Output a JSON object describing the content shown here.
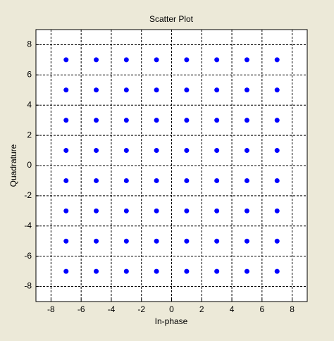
{
  "chart_data": {
    "type": "scatter",
    "title": "Scatter Plot",
    "x_label": "In-phase",
    "y_label": "Quadrature",
    "x": [
      -7,
      -7,
      -7,
      -7,
      -7,
      -7,
      -7,
      -7,
      -5,
      -5,
      -5,
      -5,
      -5,
      -5,
      -5,
      -5,
      -3,
      -3,
      -3,
      -3,
      -3,
      -3,
      -3,
      -3,
      -1,
      -1,
      -1,
      -1,
      -1,
      -1,
      -1,
      -1,
      1,
      1,
      1,
      1,
      1,
      1,
      1,
      1,
      3,
      3,
      3,
      3,
      3,
      3,
      3,
      3,
      5,
      5,
      5,
      5,
      5,
      5,
      5,
      5,
      7,
      7,
      7,
      7,
      7,
      7,
      7,
      7
    ],
    "y": [
      7,
      5,
      3,
      1,
      -1,
      -3,
      -5,
      -7,
      7,
      5,
      3,
      1,
      -1,
      -3,
      -5,
      -7,
      7,
      5,
      3,
      1,
      -1,
      -3,
      -5,
      -7,
      7,
      5,
      3,
      1,
      -1,
      -3,
      -5,
      -7,
      7,
      5,
      3,
      1,
      -1,
      -3,
      -5,
      -7,
      7,
      5,
      3,
      1,
      -1,
      -3,
      -5,
      -7,
      7,
      5,
      3,
      1,
      -1,
      -3,
      -5,
      -7,
      7,
      5,
      3,
      1,
      -1,
      -3,
      -5,
      -7
    ],
    "color": "#0000ff",
    "xlim": [
      -9,
      9
    ],
    "ylim": [
      -9,
      9
    ],
    "xticks": [
      -8,
      -6,
      -4,
      -2,
      0,
      2,
      4,
      6,
      8
    ],
    "yticks": [
      -8,
      -6,
      -4,
      -2,
      0,
      2,
      4,
      6,
      8
    ],
    "grid": true
  }
}
